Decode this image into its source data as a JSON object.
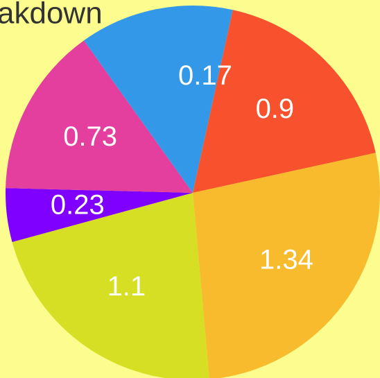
{
  "chart_data": {
    "type": "pie",
    "title": "akdown",
    "categories": [
      null,
      null,
      null,
      null,
      null,
      null,
      null
    ],
    "values": [
      0.17,
      0.9,
      1.34,
      1.1,
      0.23,
      0.73,
      0.49
    ],
    "value_labels": [
      "0.17",
      "0.9",
      "1.34",
      "1.1",
      "0.23",
      "0.73",
      null
    ],
    "colors": [
      "#3398e8",
      "#f7522d",
      "#f7bb2d",
      "#d6df23",
      "#8000ff",
      "#e43e9f",
      "#3398e8"
    ]
  }
}
